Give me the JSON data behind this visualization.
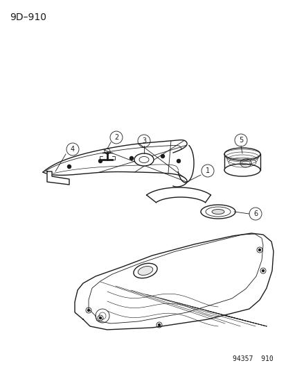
{
  "title": "9D–910",
  "watermark": "94357  910",
  "bg_color": "#ffffff",
  "line_color": "#1a1a1a",
  "label_color": "#1a1a1a",
  "part_labels": [
    "1",
    "2",
    "3",
    "4",
    "5",
    "6"
  ],
  "fig_width": 4.14,
  "fig_height": 5.33,
  "dpi": 100
}
